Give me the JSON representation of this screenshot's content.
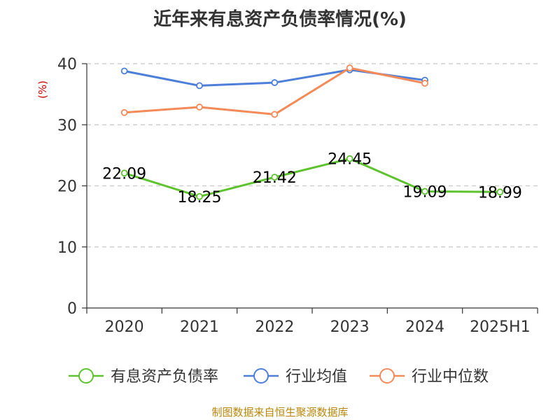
{
  "chart_data": {
    "type": "line",
    "title": "近年来有息资产负债率情况(%)",
    "ylabel": "(%)",
    "ylim": [
      0,
      40
    ],
    "yticks": [
      0,
      10,
      20,
      30,
      40
    ],
    "categories": [
      "2020",
      "2021",
      "2022",
      "2023",
      "2024",
      "2025H1"
    ],
    "series": [
      {
        "name": "有息资产负债率",
        "color": "#5ec32f",
        "values": [
          22.09,
          18.25,
          21.42,
          24.45,
          19.09,
          18.99
        ],
        "labels": [
          "22.09",
          "18.25",
          "21.42",
          "24.45",
          "19.09",
          "18.99"
        ]
      },
      {
        "name": "行业均值",
        "color": "#4e7fd8",
        "values": [
          38.8,
          36.4,
          36.9,
          39.0,
          37.3,
          null
        ]
      },
      {
        "name": "行业中位数",
        "color": "#f48a57",
        "values": [
          32.0,
          32.9,
          31.7,
          39.3,
          36.8,
          null
        ]
      }
    ],
    "grid": true,
    "legend_position": "bottom"
  },
  "source": "制图数据来自恒生聚源数据库"
}
